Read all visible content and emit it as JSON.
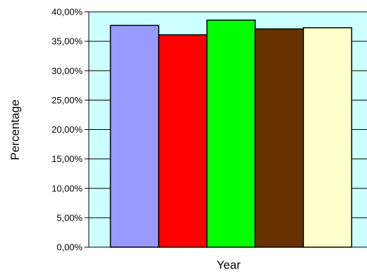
{
  "chart_data": {
    "type": "bar",
    "title": "",
    "xlabel": "Year",
    "ylabel": "Percentage",
    "ylim": [
      0,
      40
    ],
    "ytick_values": [
      0,
      5,
      10,
      15,
      20,
      25,
      30,
      35,
      40
    ],
    "ytick_labels": [
      "0,00%",
      "5,00%",
      "10,00%",
      "15,00%",
      "20,00%",
      "25,00%",
      "30,00%",
      "35,00%",
      "40,00%"
    ],
    "grid": "horizontal",
    "legend": "none",
    "plot_background": "#ccffff",
    "series": [
      {
        "value": 37.7,
        "color": "#9999ff"
      },
      {
        "value": 36.1,
        "color": "#ff0000"
      },
      {
        "value": 38.6,
        "color": "#00ff00"
      },
      {
        "value": 37.1,
        "color": "#663300"
      },
      {
        "value": 37.3,
        "color": "#ffffcc"
      }
    ]
  }
}
